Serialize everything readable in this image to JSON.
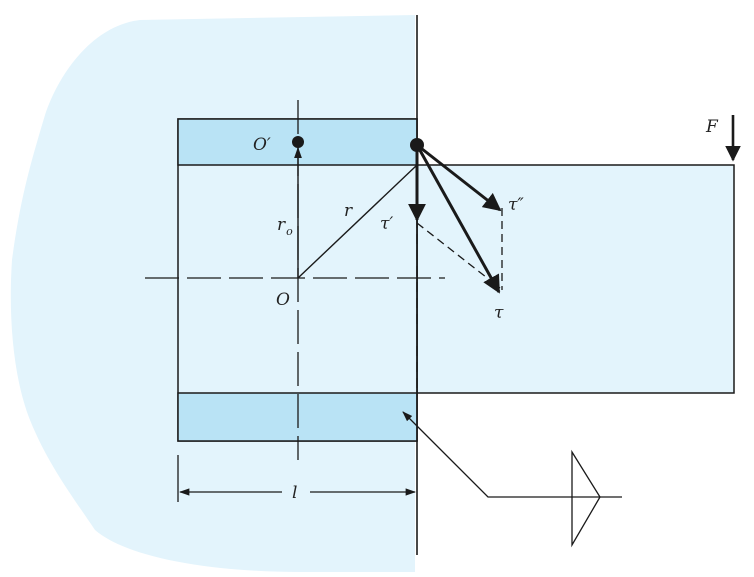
{
  "colors": {
    "background_fill": "#e3f4fc",
    "weld_fill": "#b9e3f5",
    "line": "#1a1a1a"
  },
  "labels": {
    "force": "F",
    "centroid_prime": "O′",
    "centroid": "O",
    "radius_o": "r",
    "radius_o_subscript": "o",
    "radius": "r",
    "tau_prime": "τ′",
    "tau_double_prime": "τ″",
    "tau": "τ",
    "length": "l"
  }
}
